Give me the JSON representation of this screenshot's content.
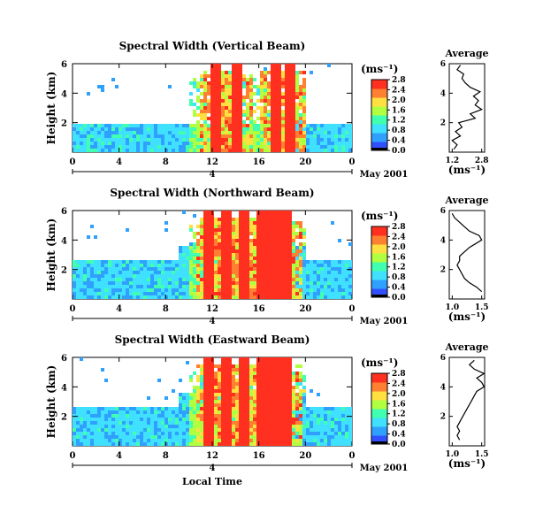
{
  "chart_data": [
    {
      "type": "heatmap",
      "title": "Spectral Width (Vertical Beam)",
      "ylabel": "Height (km)",
      "xlabel": "",
      "xlim": [
        0,
        24
      ],
      "ylim": [
        0,
        6
      ],
      "xticks": [
        "0",
        "4",
        "8",
        "12",
        "16",
        "20",
        "0"
      ],
      "yticks": [
        "2",
        "4",
        "6"
      ],
      "date_marker": "4",
      "date_label": "May 2001",
      "colorbar": {
        "unit": "(ms⁻¹)",
        "ticks": [
          "0.0",
          "0.4",
          "0.8",
          "1.2",
          "1.6",
          "2.0",
          "2.4",
          "2.8"
        ]
      },
      "average": {
        "title": "Average",
        "xlabel": "(ms⁻¹)",
        "xticks": [
          "1.2",
          "2.8"
        ],
        "yticks": [
          "2",
          "4",
          "6"
        ],
        "profile": [
          [
            1.0,
            0.2
          ],
          [
            1.2,
            0.5
          ],
          [
            0.9,
            0.8
          ],
          [
            1.4,
            1.1
          ],
          [
            1.1,
            1.4
          ],
          [
            1.5,
            1.7
          ],
          [
            1.3,
            2.0
          ],
          [
            2.3,
            2.3
          ],
          [
            2.0,
            2.6
          ],
          [
            2.7,
            2.9
          ],
          [
            2.3,
            3.2
          ],
          [
            2.5,
            3.5
          ],
          [
            2.2,
            3.8
          ],
          [
            2.6,
            4.1
          ],
          [
            2.0,
            4.4
          ],
          [
            1.7,
            4.7
          ],
          [
            1.5,
            5.0
          ],
          [
            1.6,
            5.3
          ],
          [
            1.2,
            5.6
          ],
          [
            1.4,
            5.9
          ]
        ]
      }
    },
    {
      "type": "heatmap",
      "title": "Spectral Width (Northward Beam)",
      "ylabel": "Height (km)",
      "xlabel": "",
      "xlim": [
        0,
        24
      ],
      "ylim": [
        0,
        6
      ],
      "xticks": [
        "0",
        "4",
        "8",
        "12",
        "16",
        "20",
        "0"
      ],
      "yticks": [
        "2",
        "4",
        "6"
      ],
      "date_marker": "4",
      "date_label": "May 2001",
      "colorbar": {
        "unit": "(ms⁻¹)",
        "ticks": [
          "0.0",
          "0.4",
          "0.8",
          "1.2",
          "1.6",
          "2.0",
          "2.4",
          "2.8"
        ]
      },
      "average": {
        "title": "Average",
        "xlabel": "(ms⁻¹)",
        "xticks": [
          "1.0",
          "1.5"
        ],
        "yticks": [
          "2",
          "4",
          "6"
        ],
        "profile": [
          [
            1.55,
            0.5
          ],
          [
            1.45,
            0.8
          ],
          [
            1.3,
            1.1
          ],
          [
            1.2,
            1.4
          ],
          [
            1.15,
            1.7
          ],
          [
            1.1,
            2.0
          ],
          [
            1.05,
            2.3
          ],
          [
            1.1,
            2.6
          ],
          [
            1.1,
            2.9
          ],
          [
            1.2,
            3.2
          ],
          [
            1.3,
            3.5
          ],
          [
            1.45,
            3.8
          ],
          [
            1.55,
            4.0
          ],
          [
            1.5,
            4.3
          ],
          [
            1.3,
            4.6
          ],
          [
            1.2,
            4.9
          ],
          [
            1.1,
            5.2
          ],
          [
            1.0,
            5.5
          ],
          [
            0.95,
            5.8
          ]
        ]
      }
    },
    {
      "type": "heatmap",
      "title": "Spectral Width (Eastward Beam)",
      "ylabel": "Height (km)",
      "xlabel": "Local Time",
      "xlim": [
        0,
        24
      ],
      "ylim": [
        0,
        6
      ],
      "xticks": [
        "0",
        "4",
        "8",
        "12",
        "16",
        "20",
        "0"
      ],
      "yticks": [
        "2",
        "4",
        "6"
      ],
      "date_marker": "4",
      "date_label": "May 2001",
      "colorbar": {
        "unit": "(ms⁻¹)",
        "ticks": [
          "0.0",
          "0.4",
          "0.8",
          "1.2",
          "1.6",
          "2.0",
          "2.4",
          "2.8"
        ]
      },
      "average": {
        "title": "Average",
        "xlabel": "(ms⁻¹)",
        "xticks": [
          "1.0",
          "1.5"
        ],
        "yticks": [
          "2",
          "4",
          "6"
        ],
        "profile": [
          [
            1.1,
            0.4
          ],
          [
            1.05,
            0.7
          ],
          [
            1.1,
            1.0
          ],
          [
            1.05,
            1.3
          ],
          [
            1.1,
            1.6
          ],
          [
            1.15,
            1.9
          ],
          [
            1.2,
            2.2
          ],
          [
            1.25,
            2.5
          ],
          [
            1.3,
            2.8
          ],
          [
            1.35,
            3.1
          ],
          [
            1.4,
            3.4
          ],
          [
            1.45,
            3.7
          ],
          [
            1.6,
            4.0
          ],
          [
            1.55,
            4.3
          ],
          [
            1.45,
            4.6
          ],
          [
            1.6,
            4.9
          ],
          [
            1.4,
            5.2
          ],
          [
            1.3,
            5.5
          ],
          [
            1.4,
            5.8
          ]
        ]
      }
    }
  ],
  "palette": [
    "#000000",
    "#3050ff",
    "#30a0ff",
    "#40e0ff",
    "#40ffb0",
    "#b0ff40",
    "#ffe040",
    "#ff8030",
    "#ff3020"
  ]
}
